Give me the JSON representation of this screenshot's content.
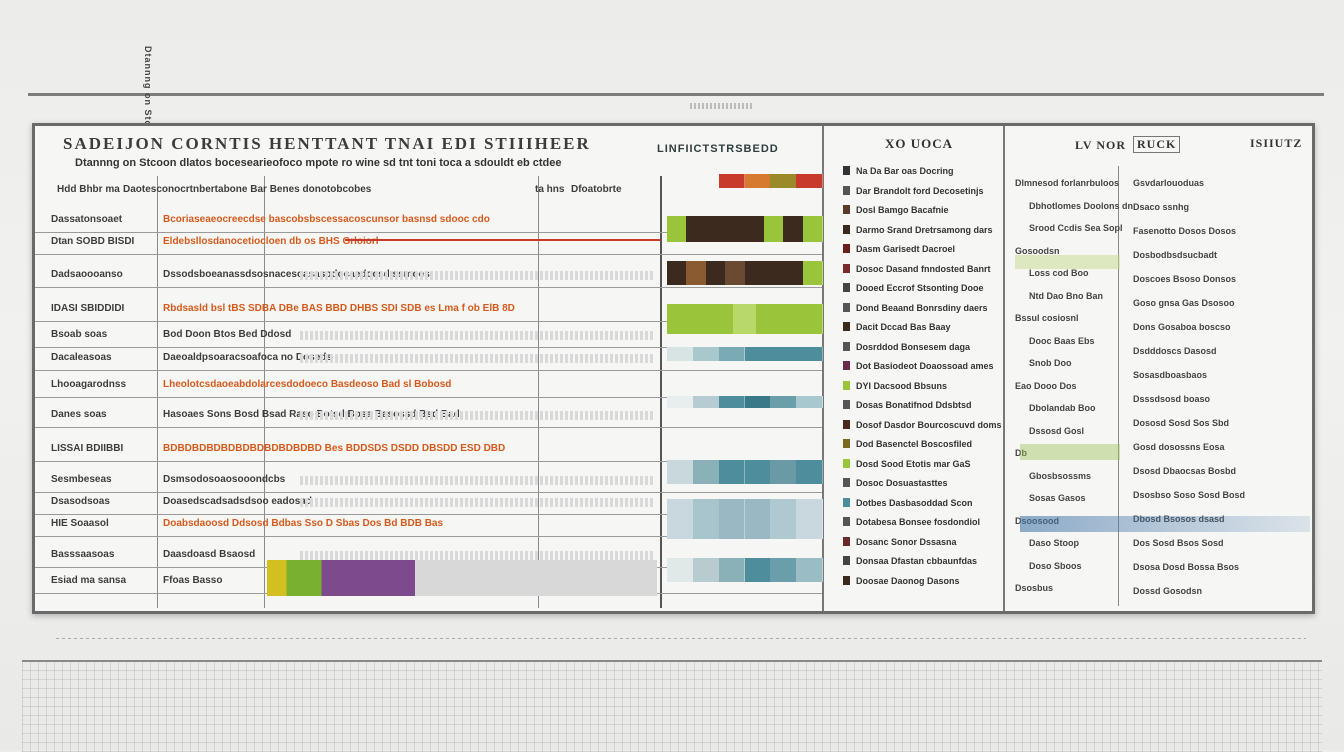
{
  "header": {
    "title": "SADEIJON CORNTIS   HENTTANT TNAI EDI STIIIHEER",
    "subtitle": "Dtannng on Stcoon dlatos bocesearieofoco mpote ro wine sd tnt toni toca a sdouldt eb ctdee"
  },
  "legend_title": "LINFIICTSTRSBEDD",
  "middle_panel": {
    "title": "XO UOCA",
    "items": [
      "Na Da Bar oas Docring",
      "Dar Brandolt ford Decosetinjs",
      "Dosl Bamgo Bacafnie",
      "Darmo Srand Dretrsamong dars",
      "Dasm Garisedt Dacroel",
      "Dosoc Dasand fnndosted Banrt",
      "Dooed Eccrof Stsonting Dooe",
      "Dond Beaand Bonrsdiny daers",
      "Dacit Dccad Bas Baay",
      "Dosrddod Bonsesem daga",
      "Dot Basiodeot Doaossoad ames",
      "DYI Dacsood Bbsuns",
      "Dosas Bonatifnod Ddsbtsd",
      "Dosof Dasdor Bourcoscuvd doms",
      "Dod Basenctel Boscosfiled",
      "Dosd Sood Etotis mar GaS",
      "Dosoc Dosuastasttes",
      "Dotbes Dasbasoddad Scon",
      "Dotabesa Bonsee fosdondiol",
      "Dosanc Sonor Dssasna",
      "Donsaa Dfastan cbbaunfdas",
      "Doosae Daonog Dasons"
    ]
  },
  "right_panel": {
    "title_left": "LV NOR",
    "title_right": "RUCK",
    "title_far": "ISIIUTZ",
    "col1": [
      "Dlmnesod forlanrbuloos",
      "Dbhotlomes Doolons dn",
      "Srood Ccdis Sea Sopl",
      "Gosoodsn",
      "Loss cod Boo",
      "Ntd Dao Bno Ban",
      "Bssul cosiosnl",
      "Dooc Baas Ebs",
      "Snob Doo",
      "Eao Dooo Dos",
      "Dbolandab Boo",
      "Dssosd Gosl",
      "Db",
      "Gbosbsossms",
      "Sosas Gasos",
      "Dsoosood",
      "Daso Stoop",
      "Doso Sboos",
      "Dsosbus"
    ],
    "col2": [
      "Gsvdarlouoduas",
      "Dsaco ssnhg",
      "Fasenotto Dosos Dosos",
      "Dosbodbsdsucbadt",
      "Doscoes Bsoso Donsos",
      "Goso gnsa Gas Dsosoo",
      "Dons Gosaboa boscso",
      "Dsdddoscs Dasosd",
      "Sosasdboasbaos",
      "Dsssdsosd boaso",
      "Dososd Sosd Sos Sbd",
      "Gosd dosossns Eosa",
      "Dsosd Dbaocsas Bosbd",
      "Dsosbso Soso Sosd Bosd",
      "Dbosd Bsosos dsasd",
      "Dos Sosd Bsos Sosd",
      "Dsosa Dosd Bossa Bsos",
      "Dossd Gosodsn"
    ]
  },
  "table": {
    "header_cells": [
      "Hdd Bhbr ma",
      "Daotesconocrtnbertabone Bar Benes donotobcobes",
      "ta hns",
      "Dfoatobrte"
    ],
    "rows": [
      {
        "label": "Dassatonsoaet",
        "value": "Bcoriaseaeocreecdse bascobsbscessacoscunsor basnsd sdooc cdo"
      },
      {
        "label": "Dtan SOBD BISDI",
        "value": "Eldebsllosdanocetiocloen db os BHS Grloiorl"
      },
      {
        "label": "Dadsaoooanso",
        "value": "Dssodsboeanassdsosnacesoasasodocaedocsd ssmoes"
      },
      {
        "label": "IDASI SBIDDIDI",
        "value": "Rbdsasld bsl tBS SDBA DBe BAS BBD DHBS SDI SDB es Lma f ob ElB 8D"
      },
      {
        "label": "Bsoab soas",
        "value": "Bod Doon Btos Bed Ddosd"
      },
      {
        "label": "Dacaleasoas",
        "value": "Daeoaldpsoaracsoafoca no Doseds"
      },
      {
        "label": "Lhooagarodnss",
        "value": "Lheolotcsdaoeabdolarcesdodoeco Basdeoso Bad sl Bobosd"
      },
      {
        "label": "Danes soas",
        "value": "Hasoaes Sons Bosd Bsad Raso Botsd Bosa Basossd Bsd Bad"
      },
      {
        "label": "LISSAI BDIIBBI",
        "value": "BDBDBDBDBDBDBDBDBDBDBD Bes BDDSDS DSDD DBSDD ESD DBD"
      },
      {
        "label": "Sesmbeseas",
        "value": "Dsmsodosoaosooondcbs"
      },
      {
        "label": "Dsasodsoas",
        "value": "Doasedscadsadsdsoo eadosad"
      },
      {
        "label": "HIE Soaasol",
        "value": "Doabsdaoosd Ddsosd Bdbas Sso D Sbas Dos Bd BDB Bas"
      },
      {
        "label": "Basssaasoas",
        "value": "Daasdoasd Bsaosd"
      },
      {
        "label": "Esiad ma sansa",
        "value": "Ffoas Basso"
      }
    ]
  },
  "colors": {
    "orange": "#d45a1c",
    "green": "#9ac43a",
    "dark_brown": "#3d2a1e",
    "teal": "#4e8e9c",
    "purple": "#7e4a8e",
    "red": "#c83a2c"
  }
}
